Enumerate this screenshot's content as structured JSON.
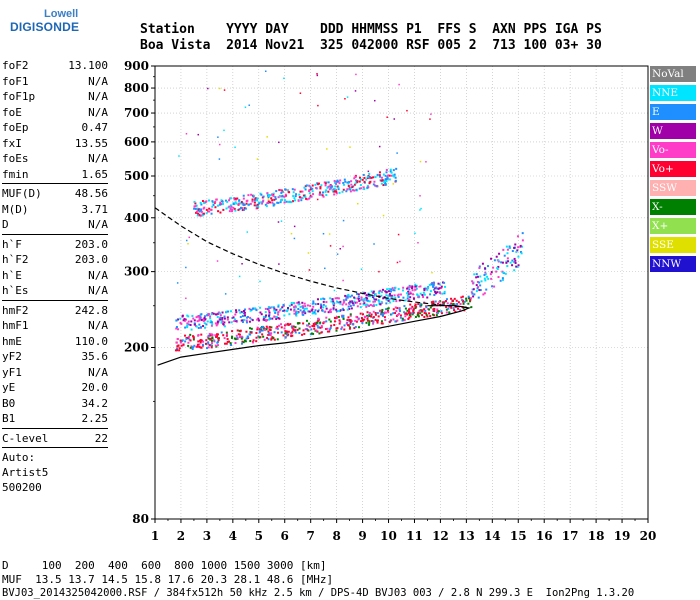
{
  "logo": {
    "line1": "Lowell",
    "line2": "DIGISONDE"
  },
  "header": {
    "line1": "Station    YYYY DAY    DDD HHMMSS P1  FFS S  AXN PPS IGA PS",
    "line2": "Boa Vista  2014 Nov21  325 042000 RSF 005 2  713 100 03+ 30"
  },
  "params": {
    "group1": [
      {
        "label": "foF2",
        "value": "13.100"
      },
      {
        "label": "foF1",
        "value": "N/A"
      },
      {
        "label": "foF1p",
        "value": "N/A"
      },
      {
        "label": "foE",
        "value": "N/A"
      },
      {
        "label": "foEp",
        "value": "0.47"
      },
      {
        "label": "fxI",
        "value": "13.55"
      },
      {
        "label": "foEs",
        "value": "N/A"
      },
      {
        "label": "fmin",
        "value": "1.65"
      }
    ],
    "group2": [
      {
        "label": "MUF(D)",
        "value": "48.56"
      },
      {
        "label": "M(D)",
        "value": "3.71"
      },
      {
        "label": "D",
        "value": "N/A"
      }
    ],
    "group3": [
      {
        "label": "h`F",
        "value": "203.0"
      },
      {
        "label": "h`F2",
        "value": "203.0"
      },
      {
        "label": "h`E",
        "value": "N/A"
      },
      {
        "label": "h`Es",
        "value": "N/A"
      }
    ],
    "group4": [
      {
        "label": "hmF2",
        "value": "242.8"
      },
      {
        "label": "hmF1",
        "value": "N/A"
      },
      {
        "label": "hmE",
        "value": "110.0"
      },
      {
        "label": "yF2",
        "value": "35.6"
      },
      {
        "label": "yF1",
        "value": "N/A"
      },
      {
        "label": "yE",
        "value": "20.0"
      },
      {
        "label": "B0",
        "value": "34.2"
      },
      {
        "label": "B1",
        "value": "2.25"
      }
    ],
    "group5": [
      {
        "label": "C-level",
        "value": "22"
      }
    ],
    "auto": [
      "Auto:",
      "Artist5",
      "500200"
    ]
  },
  "footer": {
    "line1": "D     100  200  400  600  800 1000 1500 3000 [km]",
    "line2": "MUF  13.5 13.7 14.5 15.8 17.6 20.3 28.1 48.6 [MHz]",
    "line3": "BVJ03_2014325042000.RSF / 384fx512h 50 kHz 2.5 km / DPS-4D BVJ03 003 / 2.8 N 299.3 E  Ion2Png 1.3.20"
  },
  "legend": [
    {
      "label": "NoVal",
      "color": "#808080"
    },
    {
      "label": "NNE",
      "color": "#00e5ff"
    },
    {
      "label": "E",
      "color": "#1f8fff"
    },
    {
      "label": "W",
      "color": "#a000a8"
    },
    {
      "label": "Vo-",
      "color": "#ff3cc8"
    },
    {
      "label": "Vo+",
      "color": "#ff0030"
    },
    {
      "label": "SSW",
      "color": "#ffb0b0"
    },
    {
      "label": "X-",
      "color": "#008000"
    },
    {
      "label": "X+",
      "color": "#90e050"
    },
    {
      "label": "SSE",
      "color": "#e0e000"
    },
    {
      "label": "NNW",
      "color": "#2010d0"
    }
  ],
  "chart_data": {
    "type": "scatter",
    "title": "",
    "xlabel": "",
    "ylabel": "",
    "xlim": [
      1,
      20
    ],
    "ylim": [
      80,
      900
    ],
    "x_ticks": [
      1,
      2,
      3,
      4,
      5,
      6,
      7,
      8,
      9,
      10,
      11,
      12,
      13,
      14,
      15,
      16,
      17,
      18,
      19,
      20
    ],
    "y_ticks": [
      80,
      200,
      300,
      400,
      500,
      600,
      700,
      800,
      900
    ],
    "y_scale": "log",
    "grid": true,
    "series": [
      {
        "name": "",
        "color": "#000000",
        "values": [
          {
            "x": 1.1,
            "y": 182
          },
          {
            "x": 2,
            "y": 190
          },
          {
            "x": 3,
            "y": 194
          },
          {
            "x": 4,
            "y": 198
          },
          {
            "x": 5,
            "y": 202
          },
          {
            "x": 6,
            "y": 205
          },
          {
            "x": 7,
            "y": 209
          },
          {
            "x": 8,
            "y": 213
          },
          {
            "x": 9,
            "y": 218
          },
          {
            "x": 10,
            "y": 224
          },
          {
            "x": 11,
            "y": 230
          },
          {
            "x": 12,
            "y": 236
          },
          {
            "x": 12.8,
            "y": 243
          },
          {
            "x": 13.1,
            "y": 247
          },
          {
            "x": 12.6,
            "y": 250
          },
          {
            "x": 11.5,
            "y": 250
          }
        ]
      },
      {
        "name": "",
        "color": "#000000",
        "values": [
          {
            "x": 1.0,
            "y": 422
          },
          {
            "x": 2,
            "y": 383
          },
          {
            "x": 3,
            "y": 352
          },
          {
            "x": 4,
            "y": 330
          },
          {
            "x": 5,
            "y": 312
          },
          {
            "x": 6,
            "y": 297
          },
          {
            "x": 7,
            "y": 285
          },
          {
            "x": 8,
            "y": 275
          },
          {
            "x": 9,
            "y": 267
          },
          {
            "x": 10,
            "y": 260
          },
          {
            "x": 11,
            "y": 255
          },
          {
            "x": 12,
            "y": 251
          },
          {
            "x": 13,
            "y": 248
          }
        ]
      }
    ],
    "traces": [
      {
        "xstart": 1.8,
        "xend": 13.2,
        "ystart": 205,
        "yend": 255,
        "colors": [
          "#ff0030",
          "#ff3cc8",
          "#ff0030",
          "#008000",
          "#1f8fff"
        ]
      },
      {
        "xstart": 1.8,
        "xend": 12.2,
        "ystart": 228,
        "yend": 276,
        "colors": [
          "#00e5ff",
          "#ff3cc8",
          "#1f8fff",
          "#a000a8"
        ]
      },
      {
        "xstart": 2.5,
        "xend": 10.3,
        "ystart": 420,
        "yend": 502,
        "colors": [
          "#ff0030",
          "#ff3cc8",
          "#00e5ff",
          "#1f8fff"
        ]
      },
      {
        "xstart": 13.2,
        "xend": 15.2,
        "ystart": 280,
        "yend": 345,
        "colors": [
          "#a000a8",
          "#ff3cc8",
          "#1f8fff",
          "#00e5ff"
        ]
      }
    ]
  }
}
